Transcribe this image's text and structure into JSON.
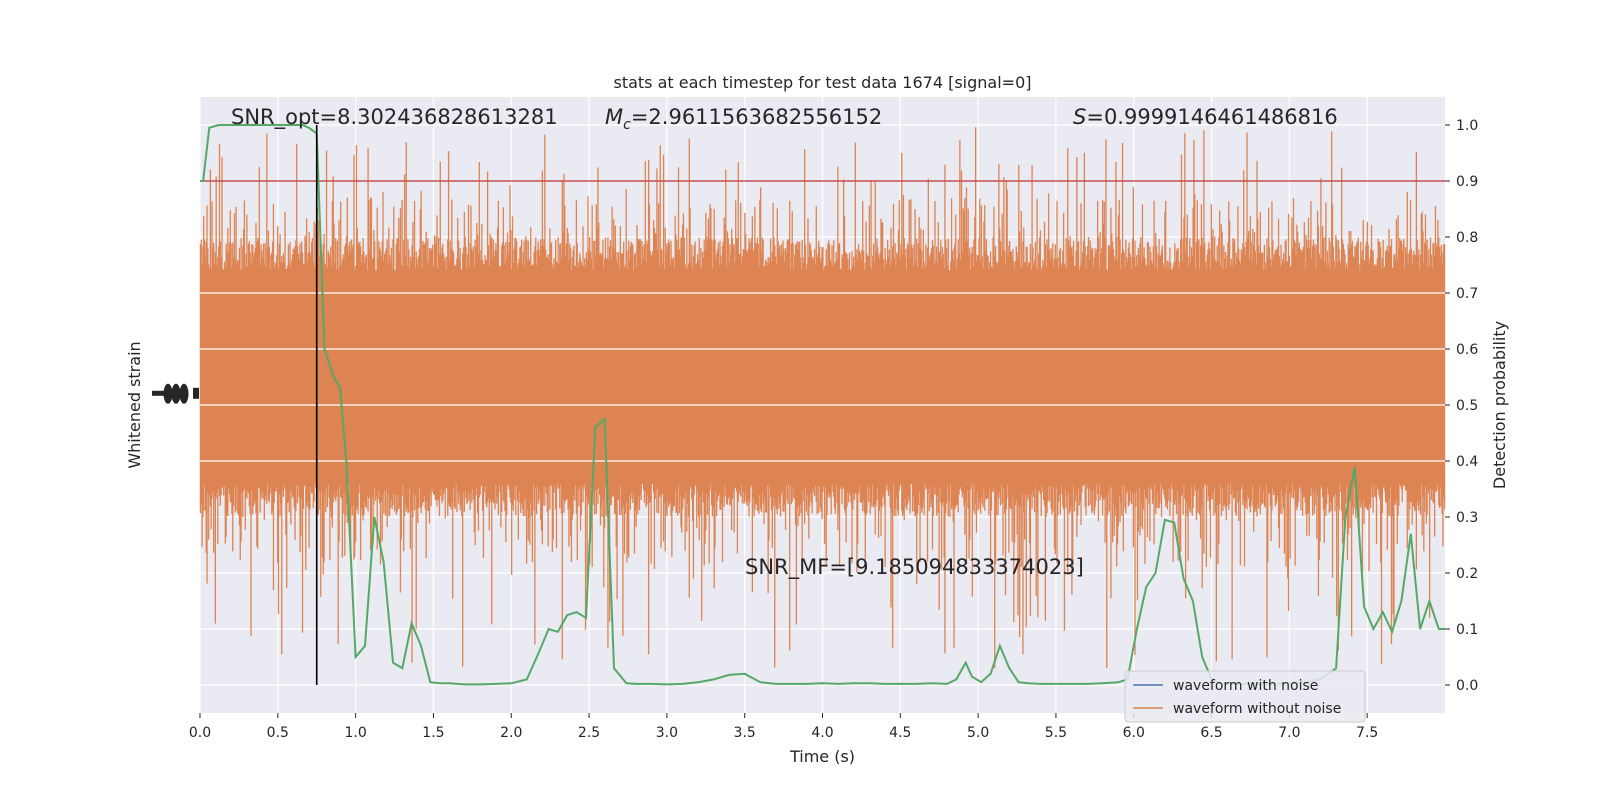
{
  "colors": {
    "background": "#ffffff",
    "plot_background": "#eaeaf2",
    "grid": "#ffffff",
    "noise_waveform": "#4c72b0",
    "clean_waveform": "#dd8452",
    "detection_probability": "#55a868",
    "threshold": "#c44e52",
    "marker": "#000000"
  },
  "chart_data": {
    "type": "line",
    "title": "stats at each timestep for test data 1674 [signal=0]",
    "xlabel": "Time (s)",
    "ylabel_left": "Whitened strain",
    "ylabel_right": "Detection probability",
    "xlim": [
      0,
      8
    ],
    "ylim_right": [
      -0.05,
      1.05
    ],
    "x_ticks": [
      "0.0",
      "0.5",
      "1.0",
      "1.5",
      "2.0",
      "2.5",
      "3.0",
      "3.5",
      "4.0",
      "4.5",
      "5.0",
      "5.5",
      "6.0",
      "6.5",
      "7.0",
      "7.5"
    ],
    "y_ticks_right": [
      "0.0",
      "0.1",
      "0.2",
      "0.3",
      "0.4",
      "0.5",
      "0.6",
      "0.7",
      "0.8",
      "0.9",
      "1.0"
    ],
    "annotations": {
      "snr_opt": "SNR_opt=8.302436828613281",
      "mc_value": "=2.9611563682556152",
      "s_value": "=0.9999146461486816",
      "snr_mf": "SNR_MF=[9.185094833374023]"
    },
    "threshold": 0.9,
    "marker_time": 0.75,
    "legend": {
      "position": "lower-right",
      "entries": [
        "waveform with noise",
        "waveform without noise"
      ]
    },
    "waveform_band": {
      "series_name": "waveform without noise",
      "typical_low": 0.3,
      "typical_high": 0.8,
      "extreme_low": 0.0,
      "extreme_high": 1.0
    },
    "detection_probability": {
      "x": [
        0.0,
        0.02,
        0.06,
        0.12,
        0.2,
        0.3,
        0.4,
        0.5,
        0.6,
        0.66,
        0.7,
        0.75,
        0.8,
        0.86,
        0.9,
        0.94,
        1.0,
        1.06,
        1.12,
        1.18,
        1.24,
        1.3,
        1.36,
        1.42,
        1.48,
        1.54,
        1.6,
        1.7,
        1.8,
        1.9,
        2.0,
        2.1,
        2.18,
        2.24,
        2.3,
        2.36,
        2.42,
        2.48,
        2.54,
        2.6,
        2.66,
        2.74,
        2.8,
        2.9,
        3.0,
        3.1,
        3.2,
        3.3,
        3.4,
        3.5,
        3.6,
        3.7,
        3.8,
        3.9,
        4.0,
        4.1,
        4.2,
        4.3,
        4.4,
        4.5,
        4.6,
        4.7,
        4.8,
        4.86,
        4.92,
        4.96,
        5.02,
        5.08,
        5.14,
        5.2,
        5.26,
        5.32,
        5.4,
        5.5,
        5.6,
        5.7,
        5.8,
        5.9,
        5.96,
        6.02,
        6.08,
        6.14,
        6.2,
        6.26,
        6.32,
        6.38,
        6.44,
        6.5,
        6.56,
        6.62,
        6.7,
        6.8,
        6.9,
        7.0,
        7.1,
        7.2,
        7.3,
        7.36,
        7.42,
        7.48,
        7.54,
        7.6,
        7.66,
        7.72,
        7.78,
        7.84,
        7.9,
        7.96,
        8.0
      ],
      "y": [
        0.9,
        0.9,
        0.995,
        1.0,
        1.0,
        1.0,
        1.0,
        1.0,
        1.0,
        1.0,
        0.995,
        0.985,
        0.6,
        0.55,
        0.53,
        0.4,
        0.05,
        0.07,
        0.3,
        0.22,
        0.04,
        0.03,
        0.11,
        0.07,
        0.005,
        0.003,
        0.003,
        0.001,
        0.001,
        0.002,
        0.003,
        0.01,
        0.06,
        0.1,
        0.095,
        0.125,
        0.13,
        0.12,
        0.46,
        0.475,
        0.03,
        0.003,
        0.002,
        0.002,
        0.001,
        0.002,
        0.005,
        0.01,
        0.018,
        0.02,
        0.005,
        0.002,
        0.002,
        0.002,
        0.003,
        0.002,
        0.003,
        0.003,
        0.002,
        0.002,
        0.002,
        0.003,
        0.002,
        0.01,
        0.04,
        0.015,
        0.005,
        0.02,
        0.07,
        0.03,
        0.005,
        0.003,
        0.002,
        0.002,
        0.002,
        0.002,
        0.003,
        0.005,
        0.01,
        0.1,
        0.175,
        0.2,
        0.295,
        0.29,
        0.19,
        0.15,
        0.05,
        0.01,
        0.003,
        0.002,
        0.002,
        0.002,
        0.002,
        0.003,
        0.005,
        0.01,
        0.03,
        0.3,
        0.39,
        0.14,
        0.1,
        0.13,
        0.095,
        0.15,
        0.27,
        0.1,
        0.15,
        0.1,
        0.1
      ]
    }
  }
}
